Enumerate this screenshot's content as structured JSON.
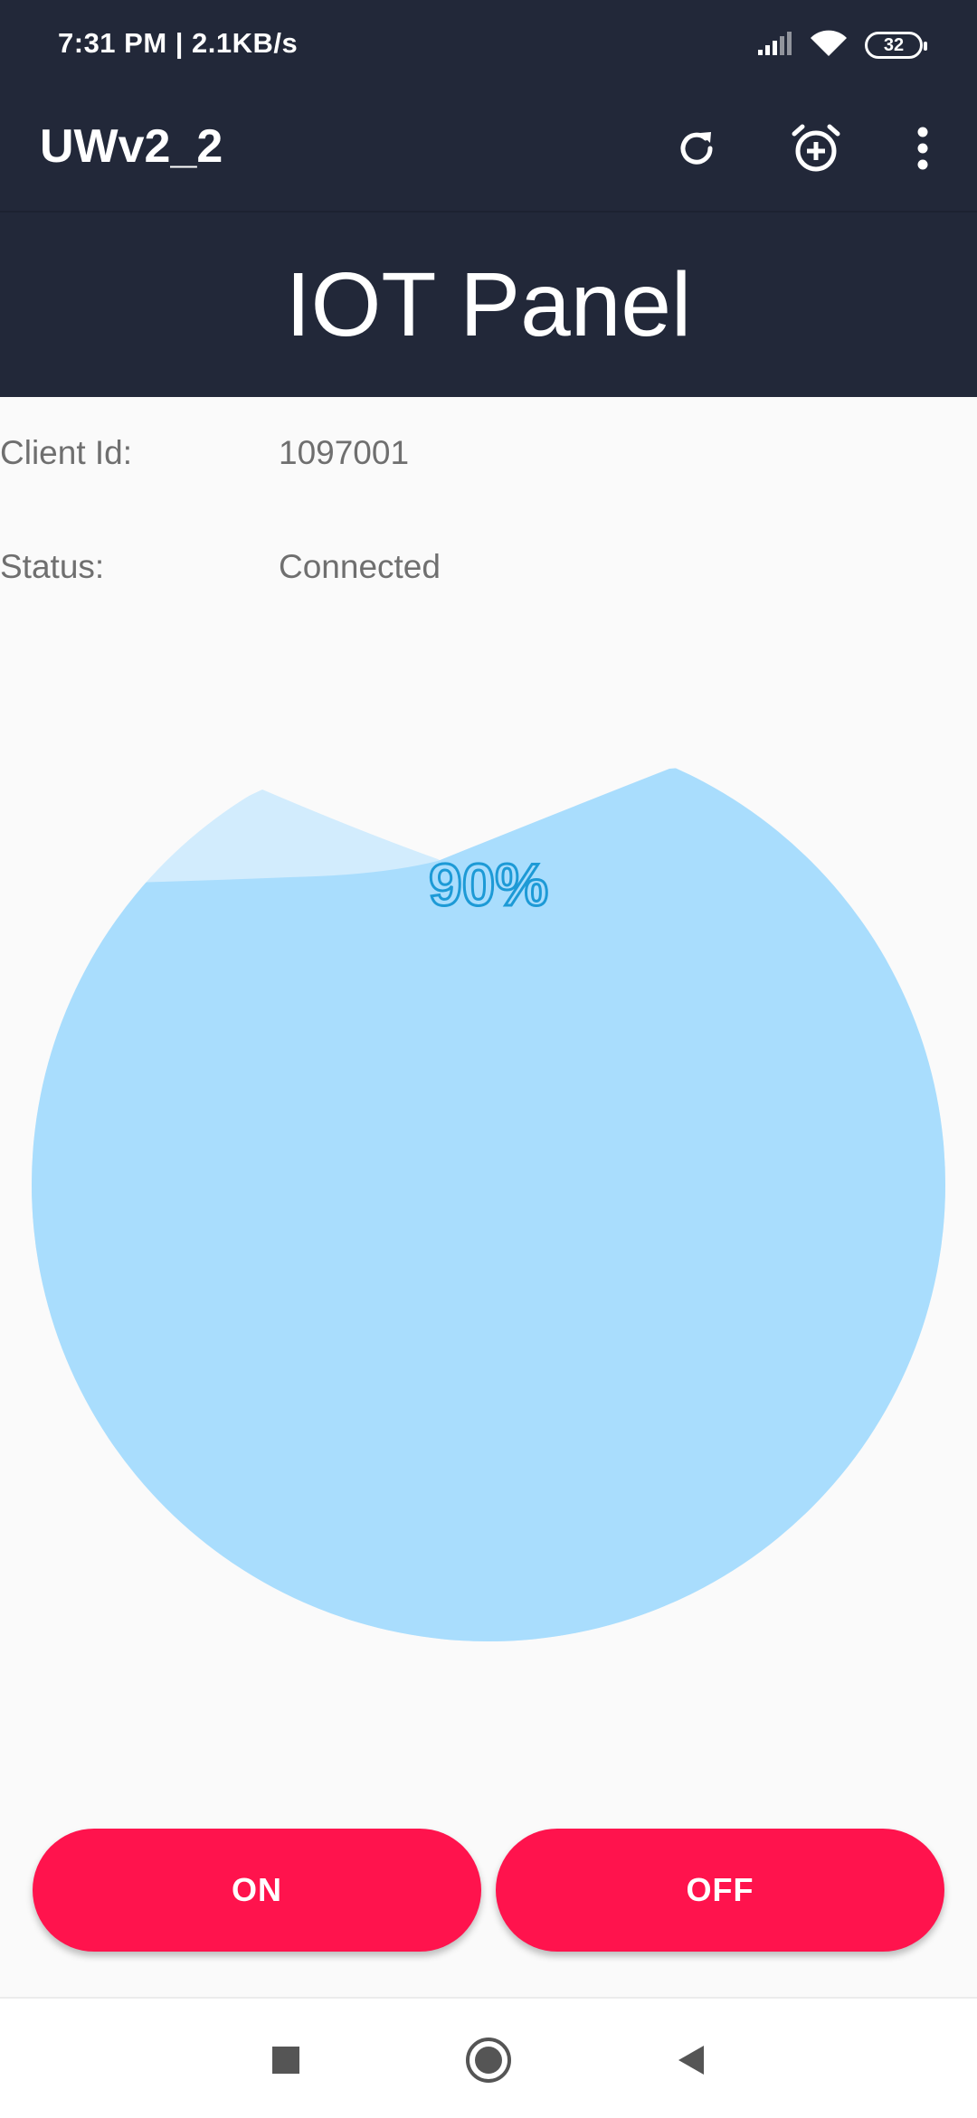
{
  "status_bar": {
    "time_speed": "7:31 PM | 2.1KB/s",
    "battery": "32",
    "icons": [
      "signal-icon",
      "wifi-icon",
      "battery-icon"
    ]
  },
  "app_bar": {
    "title": "UWv2_2",
    "actions": [
      "refresh-icon",
      "add-alarm-icon",
      "overflow-menu-icon"
    ]
  },
  "header": {
    "title": "IOT Panel"
  },
  "info": {
    "client_label": "Client Id:",
    "client_value": "1097001",
    "status_label": "Status:",
    "status_value": "Connected"
  },
  "gauge": {
    "percent_text": "90%",
    "level": 0.9,
    "fill_color": "#a9ddfd",
    "wave_color": "#d2ecfd",
    "text_stroke_color": "#1d9ad6"
  },
  "buttons": {
    "on_label": "ON",
    "off_label": "OFF",
    "color": "#ff134d"
  },
  "nav_bar": {
    "icons": [
      "recents-icon",
      "home-icon",
      "back-icon"
    ]
  },
  "colors": {
    "app_bar": "#222839",
    "background": "#fafafa"
  }
}
